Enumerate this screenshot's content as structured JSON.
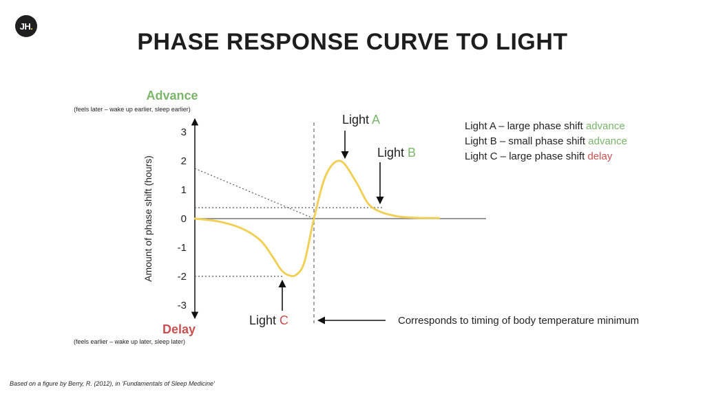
{
  "logo": {
    "text": "JH",
    "dot": "."
  },
  "title": "PHASE RESPONSE CURVE TO LIGHT",
  "chart_data": {
    "type": "line",
    "ylabel": "Amount of phase shift (hours)",
    "ylim": [
      -3.5,
      3.5
    ],
    "yticks": [
      "3",
      "2",
      "1",
      "0",
      "-1",
      "-2",
      "-3"
    ],
    "ytick_values": [
      3,
      2,
      1,
      0,
      -1,
      -2,
      -3
    ],
    "advance_label": "Advance",
    "advance_sub": "(feels later – wake up earlier, sleep earlier)",
    "delay_label": "Delay",
    "delay_sub": "(feels earlier – wake up later, sleep later)",
    "series": [
      {
        "x": [
          0,
          2,
          4,
          5.5,
          6.5,
          7.2,
          7.8,
          8.5,
          9.2,
          10,
          11,
          12.2,
          13.5,
          14.5,
          15.5,
          17,
          18.5,
          20.5
        ],
        "y": [
          0,
          -0.1,
          -0.35,
          -0.75,
          -1.3,
          -1.75,
          -1.95,
          -1.95,
          -1.5,
          0,
          1.5,
          2.0,
          1.3,
          0.55,
          0.25,
          0.08,
          0.03,
          0.02
        ]
      }
    ],
    "curve_color": "#f0d058",
    "zero_x": 10,
    "annotations": {
      "light_a": {
        "prefix": "Light ",
        "letter": "A"
      },
      "light_b": {
        "prefix": "Light ",
        "letter": "B"
      },
      "light_c": {
        "prefix": "Light ",
        "letter": "C"
      }
    }
  },
  "legend": [
    {
      "text": "Light A – large phase shift ",
      "highlight": "advance",
      "tone": "green"
    },
    {
      "text": "Light B – small phase shift ",
      "highlight": "advance",
      "tone": "green"
    },
    {
      "text": "Light C – large phase shift ",
      "highlight": "delay",
      "tone": "red"
    }
  ],
  "note": "Corresponds to timing of body temperature minimum",
  "footnote": "Based on a figure by Berry, R. (2012), in ‘Fundamentals of Sleep Medicine’",
  "colors": {
    "advance": "#7ab56a",
    "delay": "#c85050",
    "curve": "#f0d058"
  }
}
